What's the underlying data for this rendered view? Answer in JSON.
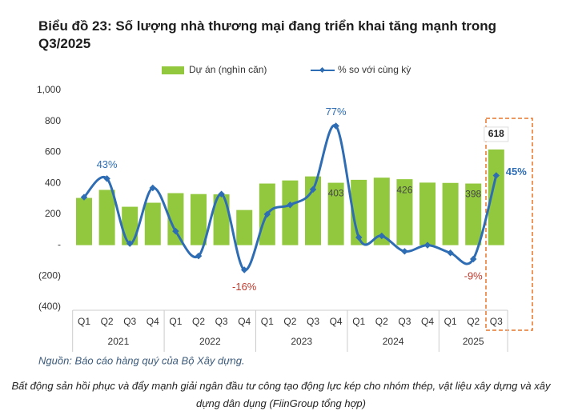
{
  "chart_data": {
    "type": "bar-line",
    "title": "Biểu đồ 23: Số lượng nhà thương mại đang triển khai tăng mạnh trong Q3/2025",
    "groups": [
      {
        "name": "2021",
        "categories": [
          "Q1",
          "Q2",
          "Q3",
          "Q4"
        ]
      },
      {
        "name": "2022",
        "categories": [
          "Q1",
          "Q2",
          "Q3",
          "Q4"
        ]
      },
      {
        "name": "2023",
        "categories": [
          "Q1",
          "Q2",
          "Q3",
          "Q4"
        ]
      },
      {
        "name": "2024",
        "categories": [
          "Q1",
          "Q2",
          "Q3",
          "Q4"
        ]
      },
      {
        "name": "2025",
        "categories": [
          "Q1",
          "Q2",
          "Q3"
        ]
      }
    ],
    "series": [
      {
        "name": "Dự án (nghìn căn)",
        "type": "bar",
        "color": "#92c83e",
        "values": [
          305,
          357,
          248,
          274,
          336,
          330,
          328,
          227,
          398,
          418,
          444,
          403,
          422,
          436,
          426,
          404,
          402,
          398,
          618
        ],
        "value_labels": [
          null,
          null,
          null,
          null,
          null,
          null,
          null,
          null,
          null,
          null,
          null,
          "403",
          null,
          null,
          "426",
          null,
          null,
          "398",
          "618"
        ]
      },
      {
        "name": "% so với cùng kỳ",
        "type": "line",
        "axis": "y2",
        "color": "#2e6db4",
        "values": [
          31,
          43,
          1,
          37,
          9,
          -7,
          33,
          -16,
          20,
          26,
          36,
          77,
          5,
          6,
          -4,
          0,
          -5,
          -9,
          45
        ],
        "value_labels": [
          null,
          "43%",
          null,
          null,
          null,
          null,
          null,
          "-16%",
          null,
          null,
          null,
          "77%",
          null,
          null,
          null,
          null,
          null,
          "-9%",
          "45%"
        ]
      }
    ],
    "ylim": [
      -400,
      1000
    ],
    "yticks": [
      {
        "value": -400,
        "label": "(400)"
      },
      {
        "value": -200,
        "label": "(200)"
      },
      {
        "value": 0,
        "label": "-"
      },
      200,
      400,
      600,
      800,
      {
        "value": 1000,
        "label": "1,000"
      }
    ],
    "y2lim": [
      -40,
      100
    ],
    "legend": "top",
    "grid": false
  },
  "source": "Nguồn: Báo cáo hàng quý của Bộ Xây dựng.",
  "caption": "Bất động sản hồi phục và đẩy mạnh giải ngân đầu tư công tạo động lực kép cho nhóm thép, vật liệu xây dựng và xây dựng dân dụng (FiinGroup tổng hợp)"
}
